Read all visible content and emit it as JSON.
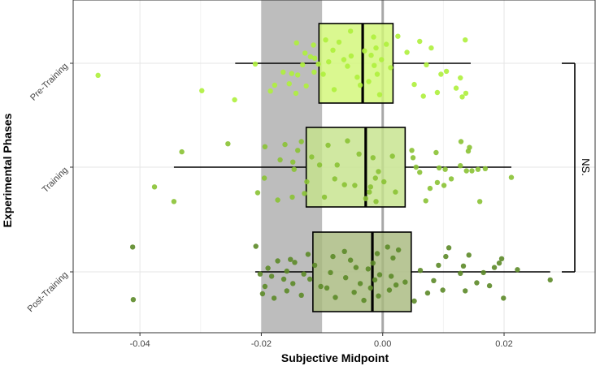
{
  "chart_data": {
    "type": "boxplot",
    "title": "",
    "xlabel": "Subjective Midpoint",
    "ylabel": "Experimental Phases",
    "xlim": [
      -0.051,
      0.035
    ],
    "x_ticks": [
      -0.04,
      -0.02,
      0.0,
      0.02
    ],
    "x_tick_labels": [
      "-0.04",
      "-0.02",
      "0.00",
      "0.02"
    ],
    "grid": true,
    "legend": "none",
    "shaded_band": {
      "x_start": -0.02,
      "x_end": -0.01,
      "color": "#bdbdbd"
    },
    "reference_line": {
      "x": 0.0,
      "color": "#a8a8a8"
    },
    "annotation": {
      "text": "NS.",
      "between": [
        "Pre-Training",
        "Post-Training"
      ]
    },
    "categories": [
      "Pre-Training",
      "Training",
      "Post-Training"
    ],
    "series": [
      {
        "category": "Pre-Training",
        "color": "#d2f777",
        "point_color": "#aef03c",
        "whisker_low": -0.0243,
        "q1": -0.0105,
        "median": -0.0033,
        "q3": 0.0017,
        "whisker_high": 0.0145,
        "points": [
          [
            -0.0469,
            0.33
          ],
          [
            -0.0298,
            0.75
          ],
          [
            -0.0244,
            1.0
          ],
          [
            -0.021,
            0.02
          ],
          [
            -0.0185,
            0.76
          ],
          [
            -0.0178,
            0.6
          ],
          [
            -0.0164,
            0.24
          ],
          [
            -0.0154,
            0.56
          ],
          [
            -0.015,
            0.28
          ],
          [
            -0.0143,
            0.82
          ],
          [
            -0.0142,
            -0.56
          ],
          [
            -0.014,
            0.32
          ],
          [
            -0.0132,
            0.04
          ],
          [
            -0.0128,
            -0.28
          ],
          [
            -0.0126,
            0.62
          ],
          [
            -0.0119,
            -0.18
          ],
          [
            -0.0114,
            -0.5
          ],
          [
            -0.0113,
            0.24
          ],
          [
            -0.0112,
            -0.14
          ],
          [
            -0.0106,
            0.02
          ],
          [
            -0.0098,
            0.3
          ],
          [
            -0.0094,
            -0.64
          ],
          [
            -0.0089,
            -0.04
          ],
          [
            -0.0082,
            -0.36
          ],
          [
            -0.008,
            0.72
          ],
          [
            -0.0072,
            -0.58
          ],
          [
            -0.0064,
            -0.1
          ],
          [
            -0.0058,
            0.08
          ],
          [
            -0.0053,
            -0.88
          ],
          [
            -0.0052,
            -0.2
          ],
          [
            -0.0042,
            0.38
          ],
          [
            -0.0037,
            0.6
          ],
          [
            -0.003,
            -0.34
          ],
          [
            -0.0023,
            0.5
          ],
          [
            -0.0019,
            -0.22
          ],
          [
            -0.0015,
            -0.72
          ],
          [
            -0.0014,
            0.06
          ],
          [
            -0.0011,
            -0.42
          ],
          [
            -0.0009,
            0.3
          ],
          [
            -0.0005,
            0.86
          ],
          [
            -0.0002,
            -0.1
          ],
          [
            0.0006,
            -0.52
          ],
          [
            0.0013,
            0.12
          ],
          [
            0.0025,
            -0.74
          ],
          [
            0.004,
            -0.3
          ],
          [
            0.0052,
            0.58
          ],
          [
            0.0061,
            -0.6
          ],
          [
            0.0067,
            0.9
          ],
          [
            0.0072,
            0.04
          ],
          [
            0.008,
            -0.42
          ],
          [
            0.009,
            0.8
          ],
          [
            0.0096,
            0.3
          ],
          [
            0.0105,
            0.22
          ],
          [
            0.0121,
            0.68
          ],
          [
            0.0128,
            0.4
          ],
          [
            0.0131,
            0.92
          ],
          [
            0.0137,
            0.82
          ],
          [
            0.0136,
            -0.64
          ]
        ]
      },
      {
        "category": "Training",
        "color": "#c6e38c",
        "point_color": "#8ac234",
        "whisker_low": -0.0344,
        "q1": -0.0126,
        "median": -0.0028,
        "q3": 0.0037,
        "whisker_high": 0.0212,
        "points": [
          [
            -0.0344,
            0.94
          ],
          [
            -0.0376,
            0.54
          ],
          [
            -0.0331,
            -0.42
          ],
          [
            -0.0255,
            -0.64
          ],
          [
            -0.0206,
            0.7
          ],
          [
            -0.0194,
            -0.56
          ],
          [
            -0.0195,
            0.3
          ],
          [
            -0.0173,
            0.9
          ],
          [
            -0.0169,
            -0.2
          ],
          [
            -0.0161,
            -0.62
          ],
          [
            -0.0149,
            0.82
          ],
          [
            -0.0148,
            -0.14
          ],
          [
            -0.0146,
            0.06
          ],
          [
            -0.014,
            -0.46
          ],
          [
            -0.0134,
            -0.7
          ],
          [
            -0.0129,
            0.72
          ],
          [
            -0.0125,
            0.4
          ],
          [
            -0.0117,
            -0.28
          ],
          [
            -0.0104,
            -0.06
          ],
          [
            -0.0096,
            0.82
          ],
          [
            -0.009,
            -0.6
          ],
          [
            -0.0079,
            0.32
          ],
          [
            -0.0075,
            -0.06
          ],
          [
            -0.0063,
            0.48
          ],
          [
            -0.0058,
            -0.72
          ],
          [
            -0.0046,
            0.5
          ],
          [
            -0.0039,
            -0.36
          ],
          [
            -0.0028,
            0.86
          ],
          [
            -0.0022,
            0.68
          ],
          [
            -0.002,
            0.54
          ],
          [
            -0.0016,
            -0.26
          ],
          [
            -0.0012,
            0.3
          ],
          [
            -0.0011,
            0.94
          ],
          [
            -0.0007,
            0.12
          ],
          [
            0.0002,
            0.4
          ],
          [
            0.0016,
            -0.3
          ],
          [
            0.0021,
            0.68
          ],
          [
            0.0048,
            -0.46
          ],
          [
            0.005,
            -0.26
          ],
          [
            0.0055,
            0.0
          ],
          [
            0.0061,
            0.14
          ],
          [
            0.0071,
            0.92
          ],
          [
            0.0078,
            0.58
          ],
          [
            0.009,
            0.42
          ],
          [
            0.0093,
            0.02
          ],
          [
            0.0101,
            0.5
          ],
          [
            0.0113,
            0.32
          ],
          [
            0.0129,
            -0.7
          ],
          [
            0.0138,
            0.1
          ],
          [
            0.0141,
            -0.44
          ],
          [
            0.0143,
            -0.54
          ],
          [
            0.0147,
            0.1
          ],
          [
            0.0157,
            0.06
          ],
          [
            0.016,
            0.94
          ],
          [
            0.0169,
            0.04
          ],
          [
            0.0212,
            0.28
          ],
          [
            0.0128,
            -0.04
          ],
          [
            0.0103,
            0.06
          ],
          [
            0.0088,
            -0.4
          ]
        ]
      },
      {
        "category": "Post-Training",
        "color": "#a8b97f",
        "point_color": "#5c8a28",
        "whisker_low": -0.021,
        "q1": -0.0115,
        "median": -0.0017,
        "q3": 0.0047,
        "whisker_high": 0.0276,
        "points": [
          [
            -0.0411,
            0.76
          ],
          [
            -0.0412,
            -0.68
          ],
          [
            -0.0209,
            -0.7
          ],
          [
            -0.0202,
            0.06
          ],
          [
            -0.0198,
            0.6
          ],
          [
            -0.0194,
            0.4
          ],
          [
            -0.0189,
            -0.1
          ],
          [
            -0.0183,
            0.12
          ],
          [
            -0.0179,
            0.72
          ],
          [
            -0.0173,
            -0.3
          ],
          [
            -0.0163,
            0.2
          ],
          [
            -0.0158,
            0.52
          ],
          [
            -0.0158,
            -0.02
          ],
          [
            -0.0152,
            -0.34
          ],
          [
            -0.0148,
            0.32
          ],
          [
            -0.0145,
            -0.26
          ],
          [
            -0.0134,
            0.64
          ],
          [
            -0.013,
            0.06
          ],
          [
            -0.0123,
            -0.48
          ],
          [
            -0.012,
            0.2
          ],
          [
            -0.0112,
            -0.18
          ],
          [
            -0.0102,
            0.4
          ],
          [
            -0.0092,
            0.44
          ],
          [
            -0.0086,
            0.02
          ],
          [
            -0.0082,
            -0.42
          ],
          [
            -0.0078,
            0.7
          ],
          [
            -0.0063,
            -0.56
          ],
          [
            -0.0061,
            0.16
          ],
          [
            -0.0053,
            -0.32
          ],
          [
            -0.0047,
            0.56
          ],
          [
            -0.0044,
            -0.12
          ],
          [
            -0.0037,
            0.32
          ],
          [
            -0.0031,
            0.78
          ],
          [
            -0.0024,
            -0.08
          ],
          [
            -0.002,
            0.44
          ],
          [
            -0.0016,
            -0.24
          ],
          [
            -0.0013,
            0.22
          ],
          [
            -0.0009,
            -0.5
          ],
          [
            -0.0007,
            0.66
          ],
          [
            -0.0005,
            0.08
          ],
          [
            0.0008,
            -0.68
          ],
          [
            0.0011,
            0.5
          ],
          [
            0.0014,
            0.12
          ],
          [
            0.0017,
            -0.38
          ],
          [
            0.0022,
            0.36
          ],
          [
            0.0026,
            -0.6
          ],
          [
            0.0037,
            0.28
          ],
          [
            0.0062,
            -0.04
          ],
          [
            0.0074,
            0.58
          ],
          [
            0.0084,
            0.24
          ],
          [
            0.0092,
            -0.18
          ],
          [
            0.0099,
            0.5
          ],
          [
            0.0104,
            -0.42
          ],
          [
            0.0109,
            -0.66
          ],
          [
            0.0128,
            0.04
          ],
          [
            0.0133,
            -0.16
          ],
          [
            0.0136,
            0.52
          ],
          [
            0.0142,
            -0.46
          ],
          [
            0.0166,
            0.02
          ],
          [
            0.0176,
            0.38
          ],
          [
            0.0184,
            -0.12
          ],
          [
            0.0192,
            -0.24
          ],
          [
            0.0196,
            -0.36
          ],
          [
            0.0199,
            0.72
          ],
          [
            0.0222,
            -0.06
          ],
          [
            0.0276,
            0.22
          ],
          [
            0.0155,
            0.3
          ],
          [
            0.0052,
            0.8
          ]
        ]
      }
    ]
  }
}
